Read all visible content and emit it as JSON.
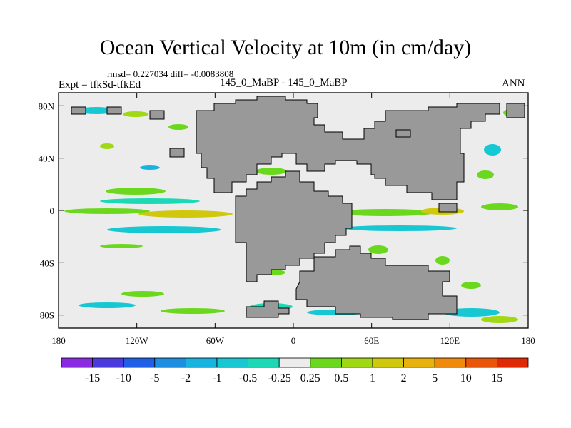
{
  "chart_data": {
    "type": "heatmap",
    "title": "Ocean Vertical Velocity at 10m (in cm/day)",
    "stats_text": "rmsd= 0.227034 diff= -0.0083808",
    "left_label": "Expt = tfkSd-tfkEd",
    "center_label": "145_0_MaBP - 145_0_MaBP",
    "right_label": "ANN",
    "x_ticks": [
      "180",
      "120W",
      "60W",
      "0",
      "60E",
      "120E",
      "180"
    ],
    "y_ticks": [
      "80N",
      "40N",
      "0",
      "40S",
      "80S"
    ],
    "x_range": [
      -180,
      180
    ],
    "y_range": [
      -90,
      90
    ],
    "colorbar_levels": [
      "-15",
      "-10",
      "-5",
      "-2",
      "-1",
      "-0.5",
      "-0.25",
      "0.25",
      "0.5",
      "1",
      "2",
      "5",
      "10",
      "15"
    ],
    "colorbar_colors": [
      "#8a2be2",
      "#4b3bdc",
      "#1e5fe6",
      "#1e8fe0",
      "#19b3e0",
      "#17c7d2",
      "#1bd9b4",
      "#ececec",
      "#6bd81e",
      "#a0d814",
      "#cfc80c",
      "#e8b20c",
      "#ef8a0a",
      "#e8560a",
      "#e02a06"
    ],
    "land_color": "#999999",
    "ocean_color": "#ececec"
  }
}
